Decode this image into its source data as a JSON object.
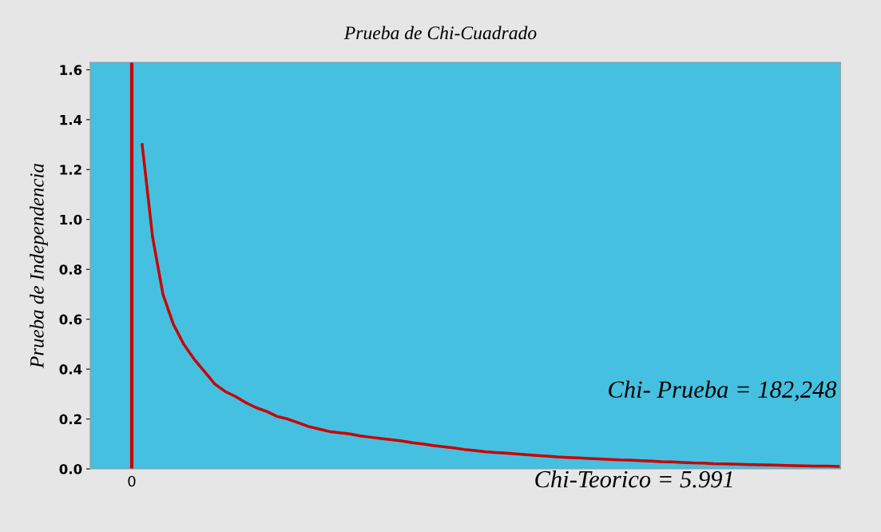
{
  "chart_data": {
    "type": "line",
    "title": "Prueba de Chi-Cuadrado",
    "ylabel": "Prueba de Independencia",
    "categories": [
      null,
      null,
      null,
      null,
      "0",
      null,
      null,
      null,
      null,
      null,
      null,
      null,
      null,
      null,
      null,
      null,
      null,
      null,
      null,
      null,
      null,
      null,
      null,
      null,
      null,
      null,
      null,
      null,
      null,
      null,
      null,
      null,
      null,
      null,
      null,
      null,
      null,
      null,
      null,
      null,
      null,
      null,
      null,
      null,
      null,
      null,
      null,
      null,
      null,
      null,
      null,
      null,
      null,
      null,
      null,
      null,
      null,
      null,
      null,
      null,
      null,
      null,
      null,
      null,
      null,
      null,
      null,
      null,
      null,
      null,
      null,
      null,
      null
    ],
    "series": [
      {
        "color": "#cc0000",
        "values": [
          null,
          null,
          null,
          null,
          null,
          1.3,
          0.93,
          0.7,
          0.58,
          0.5,
          0.44,
          0.39,
          0.34,
          0.31,
          0.29,
          0.265,
          0.245,
          0.23,
          0.21,
          0.2,
          0.185,
          0.17,
          0.16,
          0.15,
          0.145,
          0.14,
          0.132,
          0.127,
          0.122,
          0.117,
          0.112,
          0.105,
          0.1,
          0.094,
          0.089,
          0.084,
          0.078,
          0.074,
          0.069,
          0.066,
          0.063,
          0.06,
          0.057,
          0.054,
          0.051,
          0.048,
          0.046,
          0.044,
          0.042,
          0.04,
          0.038,
          0.036,
          0.035,
          0.033,
          0.031,
          0.029,
          0.028,
          0.026,
          0.024,
          0.023,
          0.021,
          0.02,
          0.019,
          0.018,
          0.017,
          0.016,
          0.015,
          0.014,
          0.013,
          0.012,
          0.011,
          0.011,
          0.01
        ]
      }
    ],
    "ylim": [
      0,
      1.63
    ],
    "yticks": [
      {
        "value": 0,
        "label": "0.0"
      },
      {
        "value": 0.2,
        "label": "0.2"
      },
      {
        "value": 0.4,
        "label": "0.4"
      },
      {
        "value": 0.6,
        "label": "0.6"
      },
      {
        "value": 0.8,
        "label": "0.8"
      },
      {
        "value": 1.0,
        "label": "1.0"
      },
      {
        "value": 1.2,
        "label": "1.2"
      },
      {
        "value": 1.4,
        "label": "1.4"
      },
      {
        "value": 1.6,
        "label": "1.6"
      }
    ],
    "ref_lines": [
      {
        "axis": "x",
        "value": "0",
        "color": "#cc0000",
        "line_style": "solid"
      }
    ],
    "annotations": [
      "Chi- Prueba = 182,248",
      "Chi-Teorico = 5.991"
    ],
    "grid": false,
    "legend": false,
    "marker": "none",
    "line_style": "solid"
  }
}
